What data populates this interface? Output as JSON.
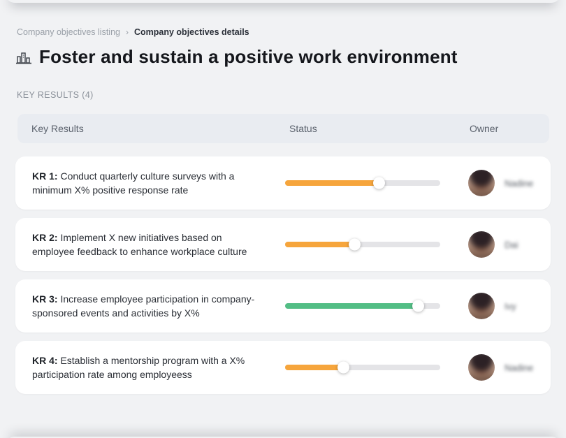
{
  "breadcrumb": {
    "items": [
      {
        "label": "Company objectives listing"
      },
      {
        "label": "Company objectives details"
      }
    ],
    "separator": "›"
  },
  "header": {
    "icon": "buildings-icon",
    "title": "Foster and sustain a positive work environment"
  },
  "section": {
    "label": "KEY RESULTS (4)"
  },
  "table": {
    "columns": {
      "key_results": "Key Results",
      "status": "Status",
      "owner": "Owner"
    },
    "rows": [
      {
        "kr_label": "KR 1:",
        "kr_text": "Conduct quarterly culture surveys with a minimum X% positive response rate",
        "progress_percent": 61,
        "progress_color": "#f6a53c",
        "owner": "Nadine"
      },
      {
        "kr_label": "KR 2:",
        "kr_text": "Implement X new initiatives based on employee feedback to enhance workplace culture",
        "progress_percent": 45,
        "progress_color": "#f6a53c",
        "owner": "Dai"
      },
      {
        "kr_label": "KR 3:",
        "kr_text": "Increase employee participation in company-sponsored events and activities by X%",
        "progress_percent": 86,
        "progress_color": "#53be85",
        "owner": "Ivy"
      },
      {
        "kr_label": "KR 4:",
        "kr_text": "Establish a mentorship program with a X% participation rate among employeess",
        "progress_percent": 38,
        "progress_color": "#f6a53c",
        "owner": "Nadine"
      }
    ]
  },
  "colors": {
    "page_bg": "#f1f2f4",
    "header_bg": "#e9ecf1",
    "track": "#e4e4e7",
    "accent_orange": "#f6a53c",
    "accent_green": "#53be85"
  }
}
